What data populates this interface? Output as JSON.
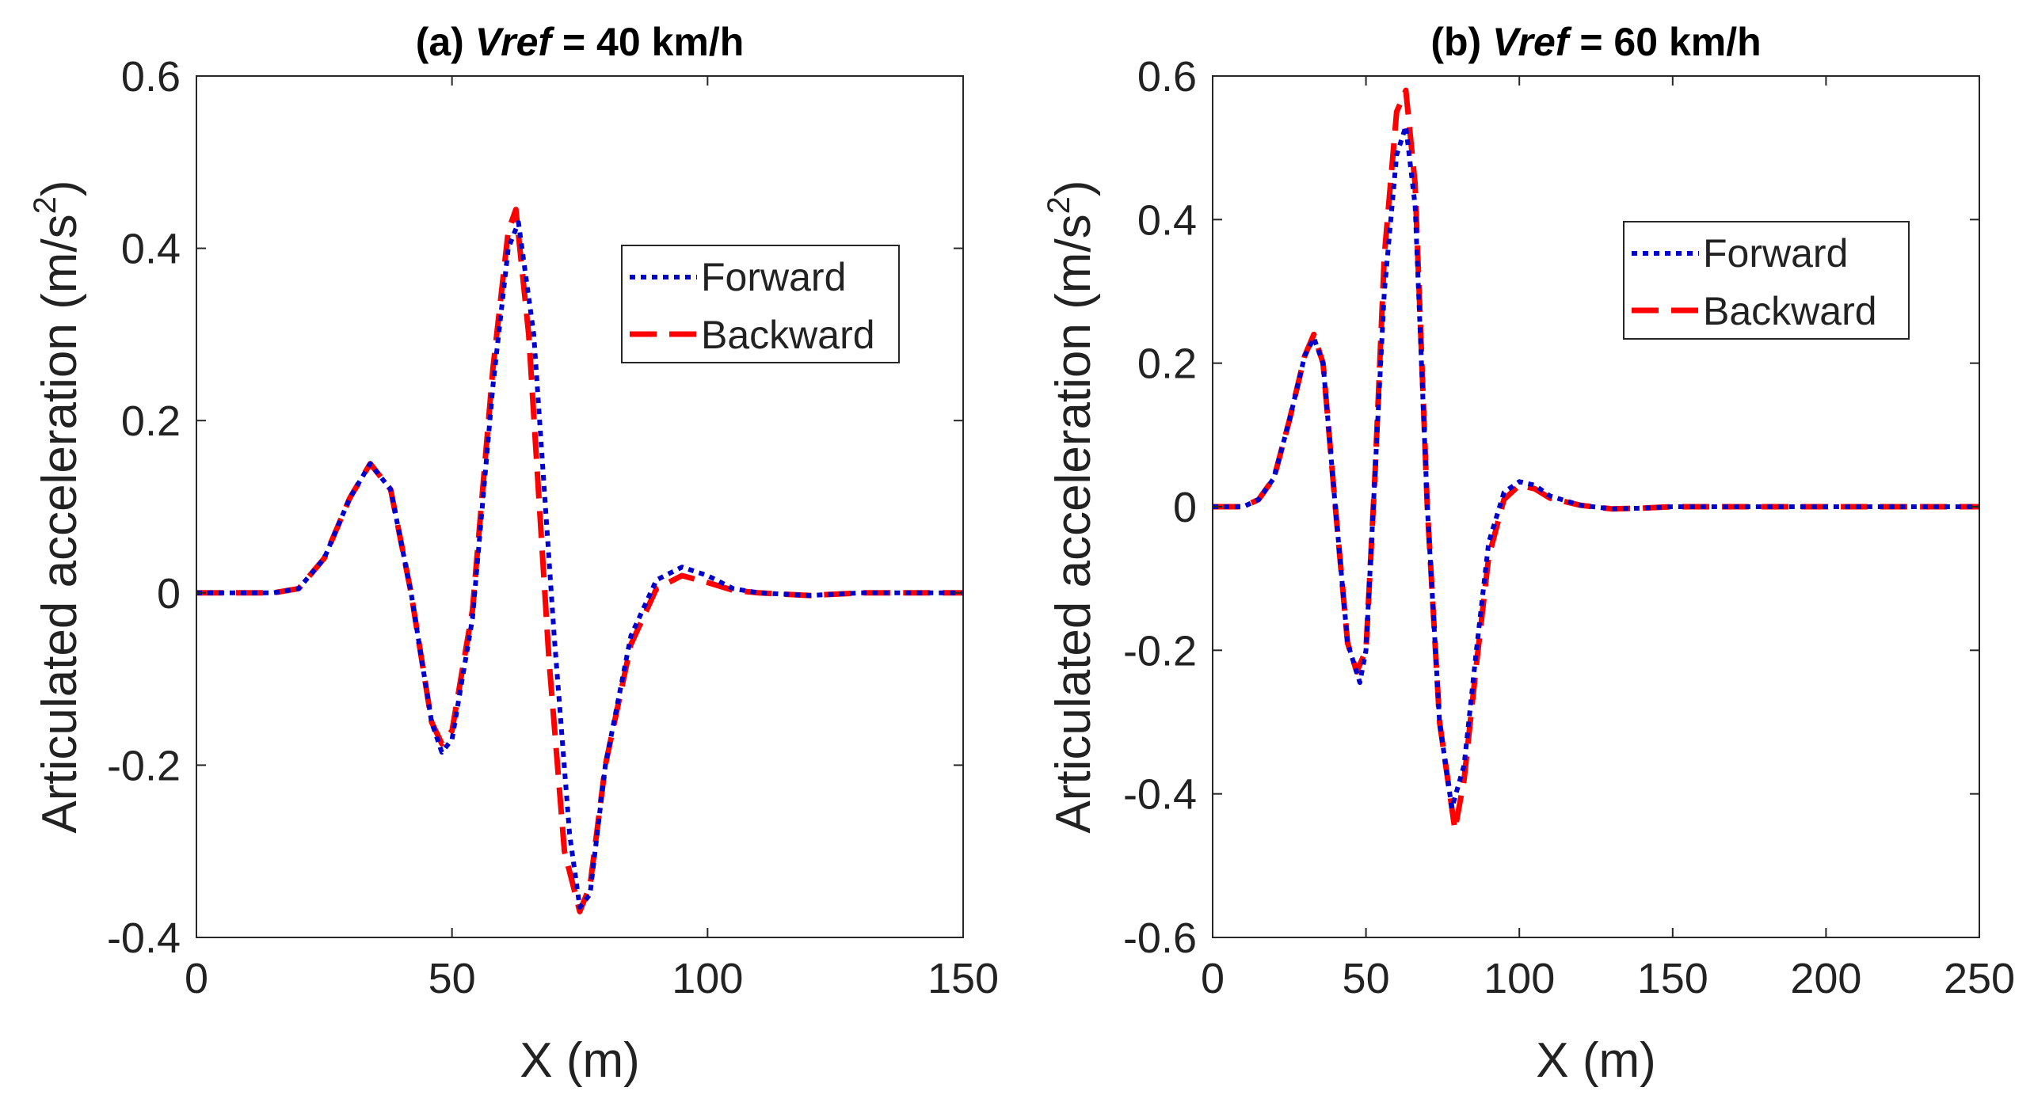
{
  "chart_data": [
    {
      "type": "line",
      "title_prefix": "(a) ",
      "title_var": "Vref",
      "title_suffix": " = 40 km/h",
      "xlabel": "X (m)",
      "ylabel_main": "Articulated acceleration (m/s",
      "ylabel_sup": "2",
      "ylabel_end": ")",
      "xlim": [
        0,
        150
      ],
      "ylim": [
        -0.4,
        0.6
      ],
      "xticks": [
        0,
        50,
        100,
        150
      ],
      "yticks": [
        -0.4,
        -0.2,
        0,
        0.2,
        0.4,
        0.6
      ],
      "xtick_labels": [
        "0",
        "50",
        "100",
        "150"
      ],
      "ytick_labels": [
        "-0.4",
        "-0.2",
        "0",
        "0.2",
        "0.4",
        "0.6"
      ],
      "legend_position": "top-right",
      "series": [
        {
          "name": "Forward",
          "color": "#0000cc",
          "style": "dotted",
          "x": [
            0,
            15,
            20,
            25,
            30,
            34,
            38,
            42,
            46,
            48,
            50,
            54,
            58,
            61,
            63,
            66,
            70,
            73,
            75,
            77,
            80,
            85,
            90,
            95,
            100,
            105,
            110,
            120,
            130,
            150
          ],
          "y": [
            0,
            0,
            0.005,
            0.04,
            0.11,
            0.15,
            0.12,
            0.0,
            -0.15,
            -0.185,
            -0.17,
            -0.03,
            0.24,
            0.4,
            0.43,
            0.3,
            -0.05,
            -0.28,
            -0.365,
            -0.35,
            -0.2,
            -0.05,
            0.015,
            0.03,
            0.02,
            0.005,
            0,
            -0.003,
            0,
            0
          ]
        },
        {
          "name": "Backward",
          "color": "#ff0000",
          "style": "dashed",
          "x": [
            0,
            15,
            20,
            25,
            30,
            34,
            38,
            42,
            46,
            48,
            50,
            54,
            58,
            61,
            62.5,
            65,
            69,
            72,
            75,
            77,
            80,
            85,
            90,
            95,
            100,
            105,
            110,
            120,
            130,
            150
          ],
          "y": [
            0,
            0,
            0.005,
            0.04,
            0.11,
            0.15,
            0.12,
            0.0,
            -0.15,
            -0.175,
            -0.16,
            -0.02,
            0.26,
            0.42,
            0.445,
            0.3,
            -0.08,
            -0.3,
            -0.37,
            -0.34,
            -0.2,
            -0.06,
            0.005,
            0.02,
            0.012,
            0.003,
            0,
            -0.003,
            0,
            0
          ]
        }
      ]
    },
    {
      "type": "line",
      "title_prefix": "(b) ",
      "title_var": "Vref",
      "title_suffix": " = 60 km/h",
      "xlabel": "X (m)",
      "ylabel_main": "Articulated acceleration (m/s",
      "ylabel_sup": "2",
      "ylabel_end": ")",
      "xlim": [
        0,
        250
      ],
      "ylim": [
        -0.6,
        0.6
      ],
      "xticks": [
        0,
        50,
        100,
        150,
        200,
        250
      ],
      "yticks": [
        -0.6,
        -0.4,
        -0.2,
        0,
        0.2,
        0.4,
        0.6
      ],
      "xtick_labels": [
        "0",
        "50",
        "100",
        "150",
        "200",
        "250"
      ],
      "ytick_labels": [
        "-0.6",
        "-0.4",
        "-0.2",
        "0",
        "0.2",
        "0.4",
        "0.6"
      ],
      "legend_position": "top-right",
      "series": [
        {
          "name": "Forward",
          "color": "#0000cc",
          "style": "dotted",
          "x": [
            0,
            10,
            15,
            20,
            25,
            30,
            33,
            36,
            40,
            44,
            48,
            50,
            53,
            56,
            60,
            63,
            66,
            70,
            74,
            78,
            82,
            86,
            90,
            95,
            100,
            105,
            110,
            120,
            130,
            140,
            150,
            175,
            200,
            250
          ],
          "y": [
            0,
            0,
            0.01,
            0.04,
            0.12,
            0.21,
            0.235,
            0.2,
            0.0,
            -0.19,
            -0.245,
            -0.2,
            0.05,
            0.3,
            0.49,
            0.53,
            0.42,
            0.0,
            -0.3,
            -0.42,
            -0.36,
            -0.2,
            -0.05,
            0.02,
            0.035,
            0.03,
            0.015,
            0.002,
            -0.003,
            -0.002,
            0,
            0,
            0,
            0
          ]
        },
        {
          "name": "Backward",
          "color": "#ff0000",
          "style": "dashed",
          "x": [
            0,
            10,
            15,
            20,
            25,
            30,
            33,
            36,
            40,
            44,
            47,
            50,
            53,
            56,
            60,
            63,
            66,
            70,
            74,
            79,
            82,
            86,
            90,
            95,
            100,
            105,
            110,
            120,
            130,
            140,
            150,
            175,
            200,
            250
          ],
          "y": [
            0,
            0,
            0.01,
            0.04,
            0.12,
            0.21,
            0.24,
            0.2,
            0.0,
            -0.19,
            -0.23,
            -0.2,
            0.05,
            0.35,
            0.55,
            0.58,
            0.45,
            0.0,
            -0.3,
            -0.45,
            -0.38,
            -0.22,
            -0.07,
            0.01,
            0.03,
            0.025,
            0.012,
            0.002,
            -0.003,
            -0.002,
            0,
            0,
            0,
            0
          ]
        }
      ]
    }
  ]
}
